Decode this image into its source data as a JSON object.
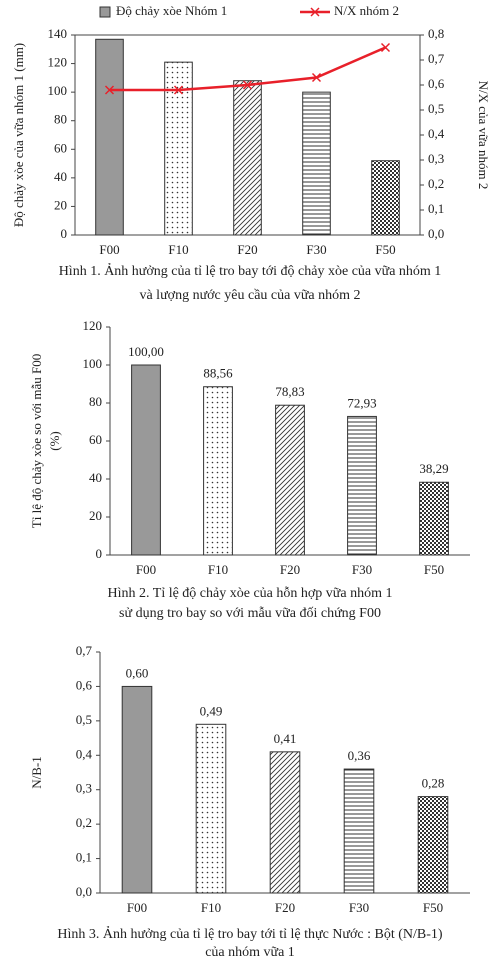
{
  "chart_data": [
    {
      "type": "bar",
      "categories": [
        "F00",
        "F10",
        "F20",
        "F30",
        "F50"
      ],
      "series": [
        {
          "name": "Độ chảy xòe Nhóm 1",
          "type": "bar",
          "color": "#999999",
          "values": [
            137,
            121,
            108,
            100,
            52
          ]
        },
        {
          "name": "N/X nhóm 2",
          "type": "line",
          "axis": "y2",
          "color": "#e8202a",
          "values": [
            0.58,
            0.58,
            0.6,
            0.63,
            0.75
          ]
        }
      ],
      "patterns": [
        "solid",
        "dots",
        "diagonal",
        "horizontal",
        "checker"
      ],
      "y_label": [
        "Độ chảy xòe của vữa nhóm 1 (mm)"
      ],
      "y2_label": "N/X của vữa nhóm 2",
      "ylim": [
        0,
        140
      ],
      "yticks": [
        0,
        20,
        40,
        60,
        80,
        100,
        120,
        140
      ],
      "y2lim": [
        0,
        0.8
      ],
      "y2ticks": [
        {
          "value": 0,
          "label": "0,0"
        },
        {
          "value": 0.1,
          "label": "0,1"
        },
        {
          "value": 0.2,
          "label": "0,2"
        },
        {
          "value": 0.3,
          "label": "0,3"
        },
        {
          "value": 0.4,
          "label": "0,4"
        },
        {
          "value": 0.5,
          "label": "0,5"
        },
        {
          "value": 0.6,
          "label": "0,6"
        },
        {
          "value": 0.7,
          "label": "0,7"
        },
        {
          "value": 0.8,
          "label": "0,8"
        }
      ],
      "frame": true,
      "legend": "top",
      "caption": [
        "Hình 1. Ảnh hưởng của tỉ lệ tro bay tới độ chảy xòe của vữa nhóm 1",
        "và lượng nước yêu cầu của vữa nhóm 2"
      ]
    },
    {
      "type": "bar",
      "categories": [
        "F00",
        "F10",
        "F20",
        "F30",
        "F50"
      ],
      "values": [
        100,
        88.56,
        78.83,
        72.93,
        38.29
      ],
      "value_labels": [
        "100,00",
        "88,56",
        "78,83",
        "72,93",
        "38,29"
      ],
      "color": "#999999",
      "patterns": [
        "solid",
        "dots",
        "diagonal",
        "horizontal",
        "checker"
      ],
      "y_label": [
        "Tỉ lệ độ chảy xòe so với mẫu F00",
        "(%)"
      ],
      "ylim": [
        0,
        120
      ],
      "yticks": [
        0,
        20,
        40,
        60,
        80,
        100,
        120
      ],
      "caption": [
        "Hình 2. Tỉ lệ độ chảy xòe của hỗn hợp vữa nhóm 1",
        "sử dụng tro bay so với mẫu vữa đối chứng F00"
      ]
    },
    {
      "type": "bar",
      "categories": [
        "F00",
        "F10",
        "F20",
        "F30",
        "F50"
      ],
      "values": [
        0.6,
        0.49,
        0.41,
        0.36,
        0.28
      ],
      "value_labels": [
        "0,60",
        "0,49",
        "0,41",
        "0,36",
        "0,28"
      ],
      "color": "#999999",
      "patterns": [
        "solid",
        "dots",
        "diagonal",
        "horizontal",
        "checker"
      ],
      "y_label": [
        "N/B-1"
      ],
      "ylim": [
        0,
        0.7
      ],
      "yticks": [
        {
          "value": 0,
          "label": "0,0"
        },
        {
          "value": 0.1,
          "label": "0,1"
        },
        {
          "value": 0.2,
          "label": "0,2"
        },
        {
          "value": 0.3,
          "label": "0,3"
        },
        {
          "value": 0.4,
          "label": "0,4"
        },
        {
          "value": 0.5,
          "label": "0,5"
        },
        {
          "value": 0.6,
          "label": "0,6"
        },
        {
          "value": 0.7,
          "label": "0,7"
        }
      ],
      "caption": [
        "Hình 3. Ảnh hưởng của tỉ lệ tro bay tới tỉ lệ thực Nước : Bột (N/B-1)",
        "của nhóm vữa 1"
      ]
    }
  ]
}
